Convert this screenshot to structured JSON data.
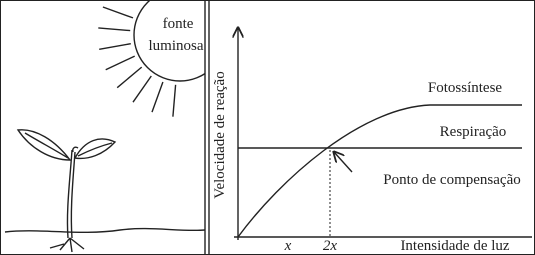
{
  "light_source": {
    "label_line1": "fonte",
    "label_line2": "luminosa"
  },
  "graph": {
    "y_axis_label": "Velocidade de reação",
    "x_axis_label": "Intensidade de luz",
    "x_ticks": [
      "x",
      "2x"
    ],
    "photosynthesis_label": "Fotossíntese",
    "respiration_label": "Respiração",
    "annotation": "Ponto de compensação"
  }
}
